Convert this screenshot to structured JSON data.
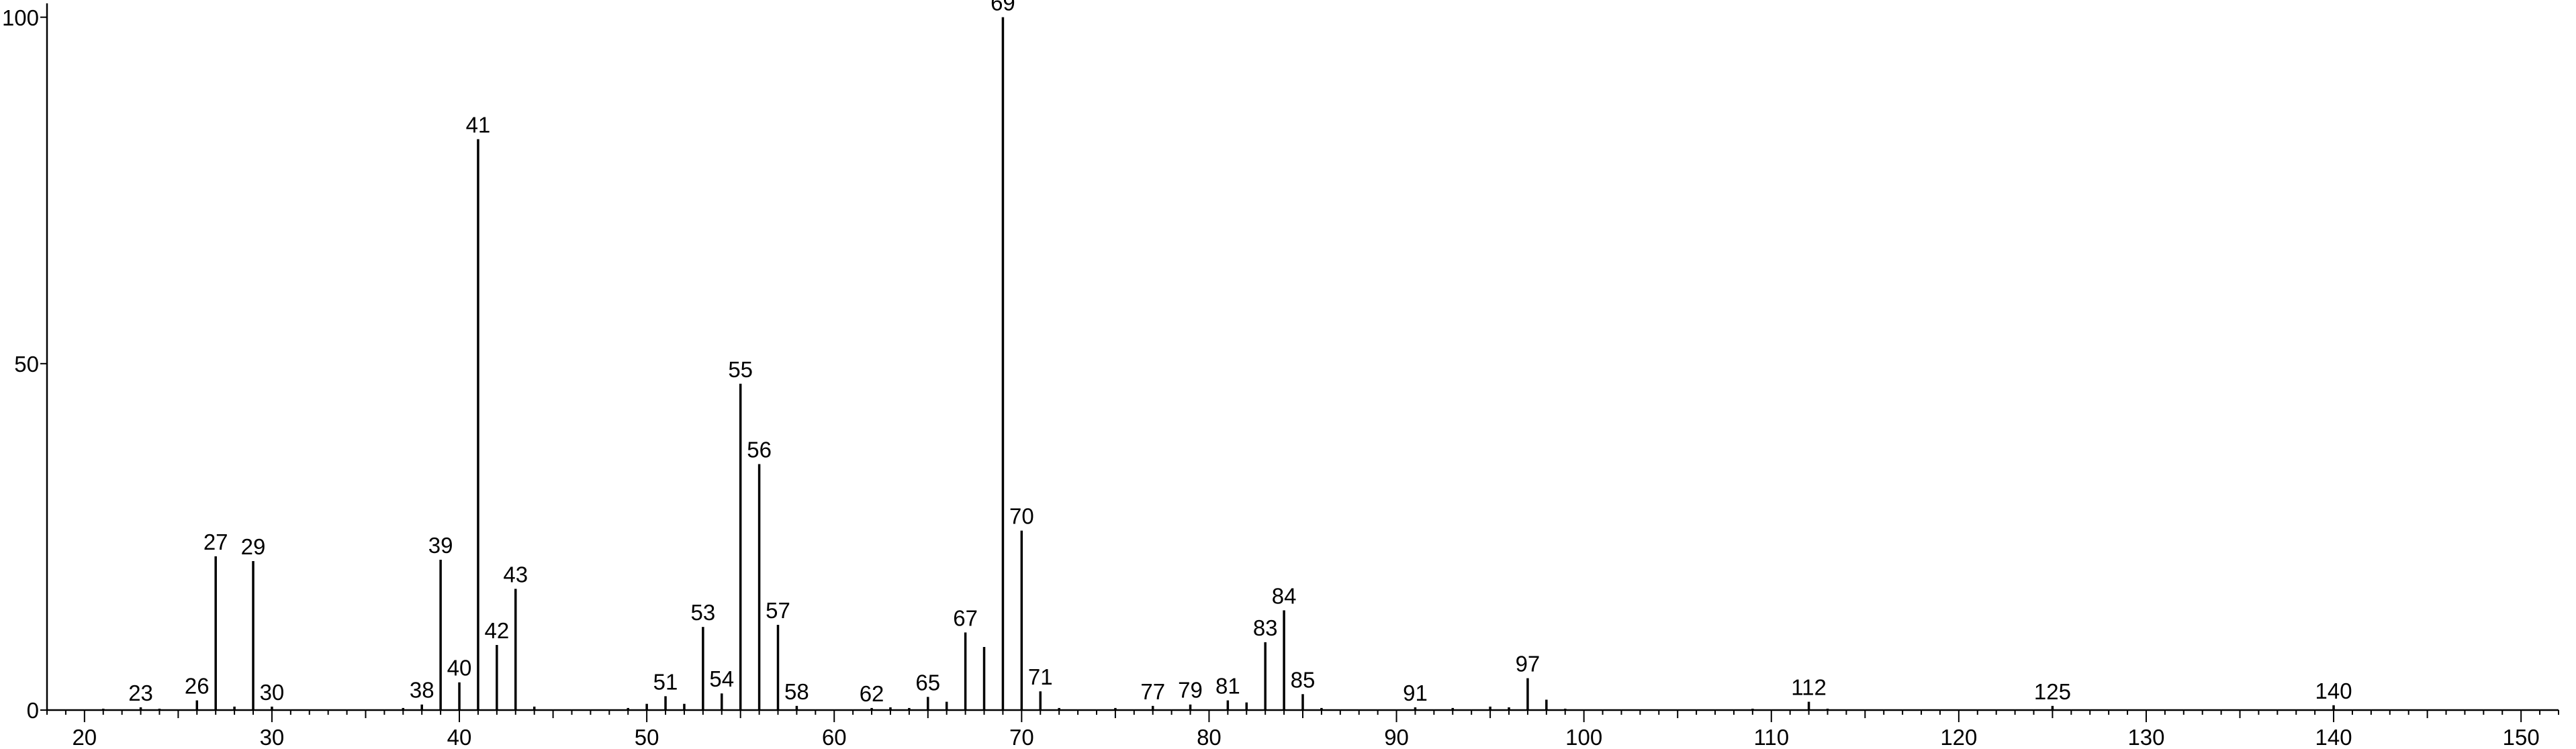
{
  "chart_data": {
    "type": "bar",
    "title": "",
    "xlabel": "",
    "ylabel": "",
    "xlim": [
      18,
      152
    ],
    "ylim": [
      0,
      102
    ],
    "x_ticks": [
      20,
      30,
      40,
      50,
      60,
      70,
      80,
      90,
      100,
      110,
      120,
      130,
      140,
      150
    ],
    "y_ticks": [
      0,
      50,
      100
    ],
    "grid": false,
    "legend": "none",
    "peaks": [
      {
        "mz": 21,
        "intensity": 0.2
      },
      {
        "mz": 23,
        "intensity": 0.4,
        "label": "23"
      },
      {
        "mz": 24,
        "intensity": 0.2
      },
      {
        "mz": 26,
        "intensity": 1.4,
        "label": "26"
      },
      {
        "mz": 27,
        "intensity": 22.2,
        "label": "27"
      },
      {
        "mz": 28,
        "intensity": 0.5
      },
      {
        "mz": 29,
        "intensity": 21.5,
        "label": "29"
      },
      {
        "mz": 30,
        "intensity": 0.5,
        "label": "30"
      },
      {
        "mz": 37,
        "intensity": 0.3
      },
      {
        "mz": 38,
        "intensity": 0.8,
        "label": "38"
      },
      {
        "mz": 39,
        "intensity": 21.7,
        "label": "39"
      },
      {
        "mz": 40,
        "intensity": 4.0,
        "label": "40"
      },
      {
        "mz": 41,
        "intensity": 82.4,
        "label": "41"
      },
      {
        "mz": 42,
        "intensity": 9.4,
        "label": "42"
      },
      {
        "mz": 43,
        "intensity": 17.5,
        "label": "43"
      },
      {
        "mz": 44,
        "intensity": 0.5
      },
      {
        "mz": 49,
        "intensity": 0.3
      },
      {
        "mz": 50,
        "intensity": 0.9
      },
      {
        "mz": 51,
        "intensity": 2.0,
        "label": "51"
      },
      {
        "mz": 52,
        "intensity": 0.9
      },
      {
        "mz": 53,
        "intensity": 12.0,
        "label": "53"
      },
      {
        "mz": 54,
        "intensity": 2.4,
        "label": "54"
      },
      {
        "mz": 55,
        "intensity": 47.1,
        "label": "55"
      },
      {
        "mz": 56,
        "intensity": 35.5,
        "label": "56"
      },
      {
        "mz": 57,
        "intensity": 12.3,
        "label": "57"
      },
      {
        "mz": 58,
        "intensity": 0.6,
        "label": "58"
      },
      {
        "mz": 62,
        "intensity": 0.3,
        "label": "62"
      },
      {
        "mz": 63,
        "intensity": 0.4
      },
      {
        "mz": 64,
        "intensity": 0.3
      },
      {
        "mz": 65,
        "intensity": 1.9,
        "label": "65"
      },
      {
        "mz": 66,
        "intensity": 1.2
      },
      {
        "mz": 67,
        "intensity": 11.2,
        "label": "67"
      },
      {
        "mz": 68,
        "intensity": 9.1
      },
      {
        "mz": 69,
        "intensity": 100.0,
        "label": "69"
      },
      {
        "mz": 70,
        "intensity": 25.9,
        "label": "70"
      },
      {
        "mz": 71,
        "intensity": 2.7,
        "label": "71"
      },
      {
        "mz": 72,
        "intensity": 0.3
      },
      {
        "mz": 75,
        "intensity": 0.3
      },
      {
        "mz": 77,
        "intensity": 0.6,
        "label": "77"
      },
      {
        "mz": 79,
        "intensity": 0.8,
        "label": "79"
      },
      {
        "mz": 81,
        "intensity": 1.4,
        "label": "81"
      },
      {
        "mz": 82,
        "intensity": 1.1
      },
      {
        "mz": 83,
        "intensity": 9.8,
        "label": "83"
      },
      {
        "mz": 84,
        "intensity": 14.4,
        "label": "84"
      },
      {
        "mz": 85,
        "intensity": 2.3,
        "label": "85"
      },
      {
        "mz": 86,
        "intensity": 0.3
      },
      {
        "mz": 91,
        "intensity": 0.4,
        "label": "91"
      },
      {
        "mz": 93,
        "intensity": 0.3
      },
      {
        "mz": 95,
        "intensity": 0.5
      },
      {
        "mz": 96,
        "intensity": 0.4
      },
      {
        "mz": 97,
        "intensity": 4.6,
        "label": "97"
      },
      {
        "mz": 98,
        "intensity": 1.5
      },
      {
        "mz": 99,
        "intensity": 0.2
      },
      {
        "mz": 109,
        "intensity": 0.2
      },
      {
        "mz": 112,
        "intensity": 1.2,
        "label": "112"
      },
      {
        "mz": 113,
        "intensity": 0.2
      },
      {
        "mz": 125,
        "intensity": 0.6,
        "label": "125"
      },
      {
        "mz": 140,
        "intensity": 0.7,
        "label": "140"
      }
    ]
  }
}
